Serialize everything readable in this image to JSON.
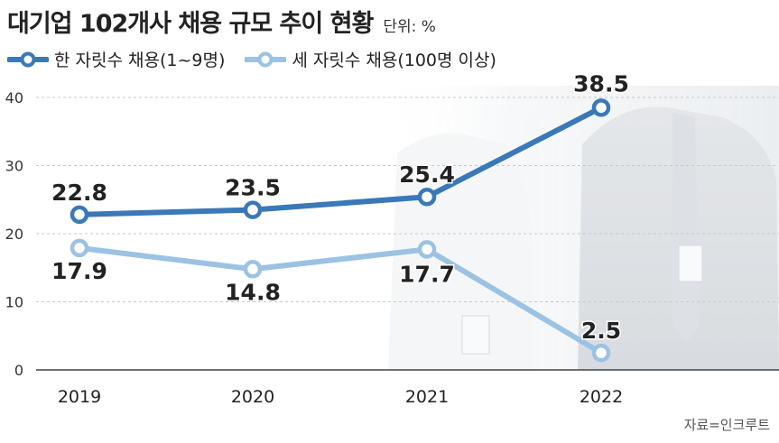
{
  "header": {
    "title": "대기업 102개사 채용 규모 추이 현황",
    "unit": "단위: %"
  },
  "source": "자료=인크루트",
  "colors": {
    "series1": "#3a78b8",
    "series2": "#9cc2e3",
    "grid": "#c8c8c8",
    "axis": "#444444"
  },
  "chart_data": {
    "type": "line",
    "title": "대기업 102개사 채용 규모 추이 현황",
    "xlabel": "",
    "ylabel": "단위: %",
    "x": [
      "2019",
      "2020",
      "2021",
      "2022"
    ],
    "ylim": [
      0,
      40
    ],
    "yticks": [
      0,
      10,
      20,
      30,
      40
    ],
    "grid": true,
    "legend": "top-left",
    "series": [
      {
        "name": "한 자릿수 채용(1~9명)",
        "values": [
          22.8,
          23.5,
          25.4,
          38.5
        ],
        "labels": [
          "22.8",
          "23.5",
          "25.4",
          "38.5"
        ]
      },
      {
        "name": "세 자릿수 채용(100명 이상)",
        "values": [
          17.9,
          14.8,
          17.7,
          2.5
        ],
        "labels": [
          "17.9",
          "14.8",
          "17.7",
          "2.5"
        ]
      }
    ]
  }
}
